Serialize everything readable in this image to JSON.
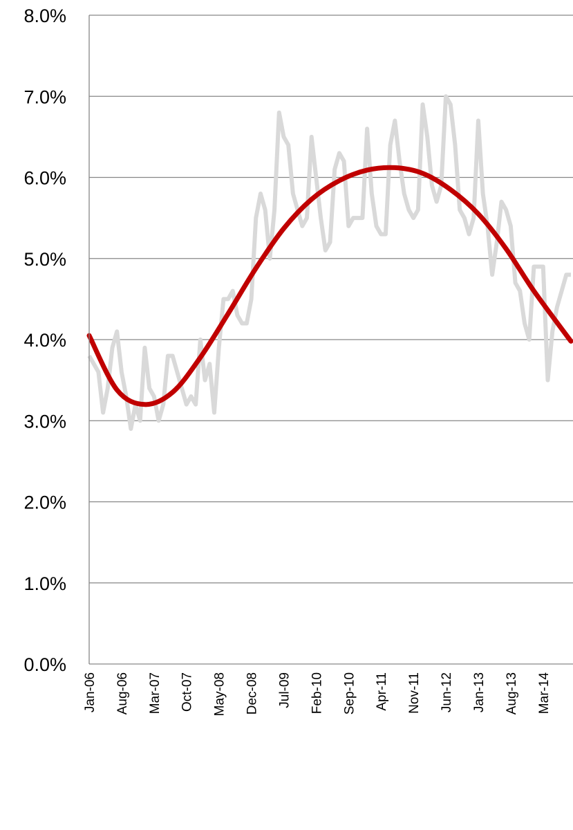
{
  "chart_data": {
    "type": "line",
    "title": "",
    "xlabel": "",
    "ylabel": "",
    "grid": true,
    "legend": "none",
    "y_ticks": [
      "0.0%",
      "1.0%",
      "2.0%",
      "3.0%",
      "4.0%",
      "5.0%",
      "6.0%",
      "7.0%",
      "8.0%"
    ],
    "ylim": [
      0,
      8
    ],
    "x_ticks": [
      "Jan-06",
      "Aug-06",
      "Mar-07",
      "Oct-07",
      "May-08",
      "Dec-08",
      "Jul-09",
      "Feb-10",
      "Sep-10",
      "Apr-11",
      "Nov-11",
      "Jun-12",
      "Jan-13",
      "Aug-13",
      "Mar-14"
    ],
    "x_start": "Jan-06",
    "x_end": "Sep-14",
    "series": [
      {
        "name": "",
        "color": "#d9d9d9",
        "x": [
          "Jan-06",
          "Feb-06",
          "Mar-06",
          "Apr-06",
          "May-06",
          "Jun-06",
          "Jul-06",
          "Aug-06",
          "Sep-06",
          "Oct-06",
          "Nov-06",
          "Dec-06",
          "Jan-07",
          "Feb-07",
          "Mar-07",
          "Apr-07",
          "May-07",
          "Jun-07",
          "Jul-07",
          "Aug-07",
          "Sep-07",
          "Oct-07",
          "Nov-07",
          "Dec-07",
          "Jan-08",
          "Feb-08",
          "Mar-08",
          "Apr-08",
          "May-08",
          "Jun-08",
          "Jul-08",
          "Aug-08",
          "Sep-08",
          "Oct-08",
          "Nov-08",
          "Dec-08",
          "Jan-09",
          "Feb-09",
          "Mar-09",
          "Apr-09",
          "May-09",
          "Jun-09",
          "Jul-09",
          "Aug-09",
          "Sep-09",
          "Oct-09",
          "Nov-09",
          "Dec-09",
          "Jan-10",
          "Feb-10",
          "Mar-10",
          "Apr-10",
          "May-10",
          "Jun-10",
          "Jul-10",
          "Aug-10",
          "Sep-10",
          "Oct-10",
          "Nov-10",
          "Dec-10",
          "Jan-11",
          "Feb-11",
          "Mar-11",
          "Apr-11",
          "May-11",
          "Jun-11",
          "Jul-11",
          "Aug-11",
          "Sep-11",
          "Oct-11",
          "Nov-11",
          "Dec-11",
          "Jan-12",
          "Feb-12",
          "Mar-12",
          "Apr-12",
          "May-12",
          "Jun-12",
          "Jul-12",
          "Aug-12",
          "Sep-12",
          "Oct-12",
          "Nov-12",
          "Dec-12",
          "Jan-13",
          "Feb-13",
          "Mar-13",
          "Apr-13",
          "May-13",
          "Jun-13",
          "Jul-13",
          "Aug-13",
          "Sep-13",
          "Oct-13",
          "Nov-13",
          "Dec-13",
          "Jan-14",
          "Feb-14",
          "Mar-14",
          "Apr-14",
          "May-14",
          "Jun-14",
          "Jul-14",
          "Aug-14",
          "Sep-14"
        ],
        "values": [
          3.8,
          3.7,
          3.6,
          3.1,
          3.4,
          3.9,
          4.1,
          3.6,
          3.3,
          2.9,
          3.2,
          3.0,
          3.9,
          3.4,
          3.3,
          3.0,
          3.2,
          3.8,
          3.8,
          3.6,
          3.4,
          3.2,
          3.3,
          3.2,
          4.0,
          3.5,
          3.7,
          3.1,
          3.9,
          4.5,
          4.5,
          4.6,
          4.3,
          4.2,
          4.2,
          4.5,
          5.5,
          5.8,
          5.6,
          5.0,
          5.6,
          6.8,
          6.5,
          6.4,
          5.8,
          5.6,
          5.4,
          5.5,
          6.5,
          6.0,
          5.5,
          5.1,
          5.2,
          6.1,
          6.3,
          6.2,
          5.4,
          5.5,
          5.5,
          5.5,
          6.6,
          5.8,
          5.4,
          5.3,
          5.3,
          6.4,
          6.7,
          6.2,
          5.8,
          5.6,
          5.5,
          5.6,
          6.9,
          6.5,
          5.9,
          5.7,
          5.9,
          7.0,
          6.9,
          6.4,
          5.6,
          5.5,
          5.3,
          5.5,
          6.7,
          5.8,
          5.4,
          4.8,
          5.2,
          5.7,
          5.6,
          5.4,
          4.7,
          4.6,
          4.2,
          4.0,
          4.9,
          4.9,
          4.9,
          3.5,
          4.1,
          4.4,
          4.6,
          4.8,
          4.8
        ]
      },
      {
        "name": "",
        "color": "#c00000",
        "x": [
          "Jan-06",
          "Jul-06",
          "Jan-07",
          "Jul-07",
          "Jan-08",
          "Jul-08",
          "Jan-09",
          "Jul-09",
          "Jan-10",
          "Jul-10",
          "Jan-11",
          "Jul-11",
          "Jan-12",
          "Jul-12",
          "Jan-13",
          "Jul-13",
          "Jan-14",
          "Sep-14"
        ],
        "values": [
          4.05,
          3.38,
          3.2,
          3.35,
          3.78,
          4.32,
          4.88,
          5.37,
          5.73,
          5.96,
          6.09,
          6.12,
          6.05,
          5.85,
          5.55,
          5.12,
          4.6,
          3.98
        ]
      }
    ]
  }
}
